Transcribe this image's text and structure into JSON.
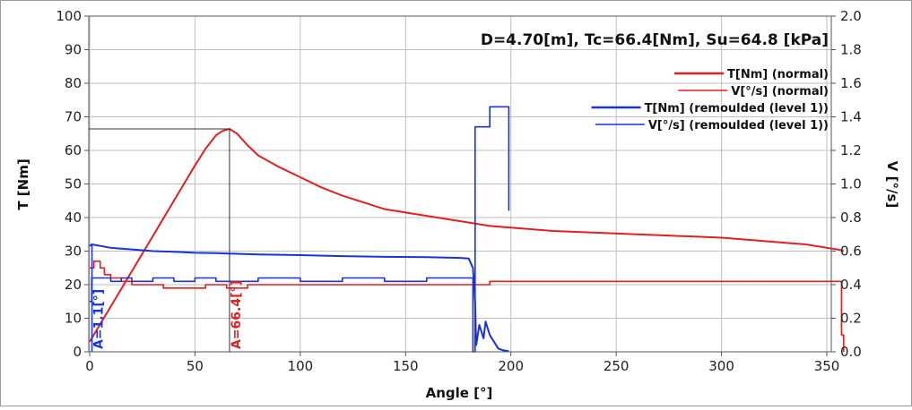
{
  "chart_data": {
    "type": "line",
    "title": "D=4.70[m], Tc=66.4[Nm], Su=64.8 [kPa]",
    "xlabel": "Angle [°]",
    "ylabel": "T [Nm]",
    "y2label": "V [°/s]",
    "xlim": [
      0,
      360
    ],
    "ylim": [
      0,
      100
    ],
    "y2lim": [
      0,
      2.0
    ],
    "x_ticks": [
      "0",
      "50",
      "100",
      "150",
      "200",
      "250",
      "300",
      "350"
    ],
    "y_ticks": [
      "0",
      "10",
      "20",
      "30",
      "40",
      "50",
      "60",
      "70",
      "80",
      "90",
      "100"
    ],
    "y2_ticks": [
      "0.0",
      "0.2",
      "0.4",
      "0.6",
      "0.8",
      "1.0",
      "1.2",
      "1.4",
      "1.6",
      "1.8",
      "2.0"
    ],
    "grid": true,
    "legend_position": "top-right",
    "colors": {
      "normal": "#e02020",
      "remoulded": "#1a33d9",
      "grid": "#bfbfbf",
      "marker": "#333333"
    },
    "series": [
      {
        "name": "T[Nm] (normal)",
        "axis": "left",
        "color": "#e02020",
        "x": [
          0,
          10,
          20,
          30,
          40,
          50,
          55,
          60,
          63,
          66.4,
          70,
          75,
          80,
          90,
          100,
          110,
          120,
          130,
          140,
          150,
          160,
          170,
          180,
          190,
          200,
          220,
          240,
          260,
          280,
          300,
          320,
          340,
          350,
          355,
          358
        ],
        "y": [
          3,
          13.5,
          24,
          34.5,
          45,
          55.5,
          60.5,
          64.5,
          65.8,
          66.4,
          65,
          61.5,
          58.5,
          55,
          52,
          49,
          46.5,
          44.5,
          42.5,
          41.5,
          40.5,
          39.5,
          38.5,
          37.5,
          37,
          36,
          35.5,
          35,
          34.5,
          34,
          33,
          32,
          31,
          30.5,
          30
        ]
      },
      {
        "name": "V[°/s] (normal)",
        "axis": "right",
        "color": "#e02020",
        "x": [
          0,
          1,
          2,
          3,
          5,
          7,
          10,
          15,
          20,
          25,
          35,
          45,
          55,
          65,
          75,
          90,
          110,
          130,
          150,
          170,
          190,
          210,
          230,
          250,
          270,
          290,
          310,
          330,
          350,
          356,
          357,
          358
        ],
        "y": [
          0.5,
          0.5,
          0.54,
          0.54,
          0.5,
          0.46,
          0.44,
          0.42,
          0.4,
          0.4,
          0.38,
          0.38,
          0.4,
          0.38,
          0.4,
          0.4,
          0.4,
          0.4,
          0.4,
          0.4,
          0.42,
          0.42,
          0.42,
          0.42,
          0.42,
          0.42,
          0.42,
          0.42,
          0.42,
          0.42,
          0.1,
          0.0
        ]
      },
      {
        "name": "T[Nm] (remoulded (level 1))",
        "axis": "left",
        "color": "#1a33d9",
        "x": [
          0,
          1,
          10,
          20,
          30,
          40,
          50,
          60,
          70,
          80,
          100,
          120,
          140,
          160,
          175,
          180,
          182,
          183,
          183.5,
          185,
          187,
          188,
          190,
          192,
          194,
          196,
          198,
          199
        ],
        "y": [
          31.5,
          32,
          31,
          30.5,
          30,
          29.8,
          29.5,
          29.4,
          29.2,
          29,
          28.8,
          28.5,
          28.3,
          28.2,
          28,
          27.8,
          25,
          15,
          2,
          8,
          4,
          9,
          5,
          3,
          1,
          0.5,
          0.3,
          0.2
        ]
      },
      {
        "name": "V[°/s] (remoulded (level 1))",
        "axis": "right",
        "color": "#1a33d9",
        "x": [
          0,
          1,
          5,
          10,
          15,
          20,
          30,
          40,
          50,
          60,
          80,
          100,
          120,
          140,
          160,
          170,
          180,
          182,
          183,
          184,
          185,
          186,
          187,
          188,
          190,
          192,
          194,
          196,
          198,
          199
        ],
        "y": [
          0.3,
          0.44,
          0.44,
          0.42,
          0.44,
          0.42,
          0.44,
          0.42,
          0.44,
          0.42,
          0.44,
          0.42,
          0.44,
          0.42,
          0.44,
          0.44,
          0.44,
          0.0,
          1.34,
          1.34,
          1.34,
          1.34,
          1.34,
          1.34,
          1.46,
          1.46,
          1.46,
          1.46,
          1.46,
          0.84
        ]
      }
    ],
    "annotations": [
      {
        "text": "A=1.1[°]",
        "x": 1.1,
        "color": "#1a33d9"
      },
      {
        "text": "A=66.4[°]",
        "x": 66.4,
        "y": 66.4,
        "color": "#e02020"
      }
    ]
  }
}
